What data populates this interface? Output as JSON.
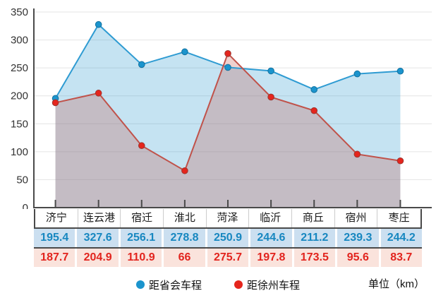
{
  "chart_data": {
    "type": "area",
    "title": "",
    "xlabel": "",
    "ylabel": "",
    "unit_label": "单位（km）",
    "categories": [
      "济宁",
      "连云港",
      "宿迁",
      "淮北",
      "菏泽",
      "临沂",
      "商丘",
      "宿州",
      "枣庄"
    ],
    "series": [
      {
        "name": "距省会车程",
        "values": [
          195.4,
          327.6,
          256.1,
          278.8,
          250.9,
          244.6,
          211.2,
          239.3,
          244.2
        ],
        "line_color": "#2e9bd2",
        "marker_color": "#1b94cd",
        "marker_stroke": "#13719e",
        "fill_color": "rgba(46,155,210,0.28)",
        "cell_bg": "#cbdff0",
        "text_color": "#1787c0"
      },
      {
        "name": "距徐州车程",
        "values": [
          187.7,
          204.9,
          110.9,
          66,
          275.7,
          197.8,
          173.5,
          95.6,
          83.7
        ],
        "line_color": "#c0524a",
        "marker_color": "#e5251d",
        "marker_stroke": "#9c352f",
        "fill_color": "rgba(195,85,75,0.27)",
        "cell_bg": "#fae3dc",
        "text_color": "#e2241e"
      }
    ],
    "ylim": [
      0,
      350
    ],
    "ytick_step": 50,
    "grid": true,
    "legend_position": "bottom",
    "axis_color": "#4a4a4a",
    "grid_color": "#e4e4e4",
    "tick_label_color": "#333333"
  }
}
